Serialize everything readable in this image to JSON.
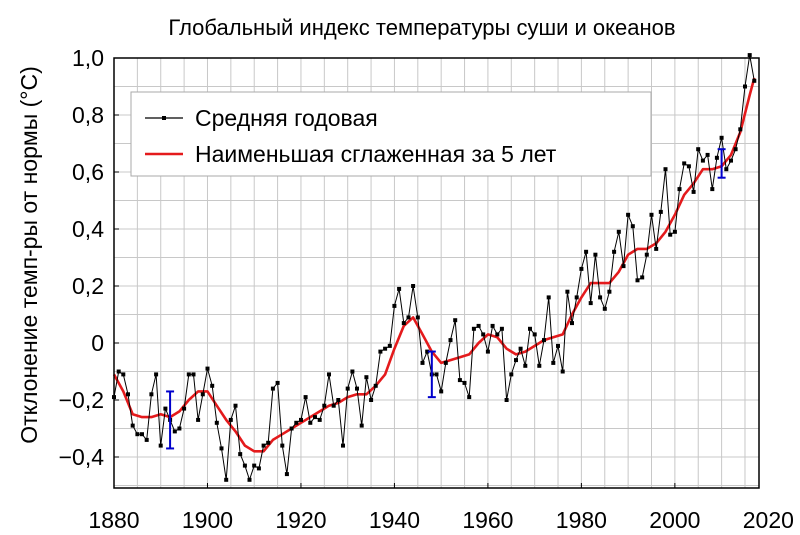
{
  "chart_data": {
    "type": "line",
    "title": "Глобальный индекс температуры суши и океанов",
    "xlabel": "",
    "ylabel": "Отклонение темп-ры от нормы (°C)",
    "xlim": [
      1880,
      2018
    ],
    "ylim": [
      -0.5,
      1.0
    ],
    "x_ticks": [
      1880,
      1900,
      1920,
      1940,
      1960,
      1980,
      2000,
      2020
    ],
    "y_ticks": [
      -0.4,
      -0.2,
      0,
      0.2,
      0.4,
      0.6,
      0.8,
      1.0
    ],
    "x_tick_labels": [
      "1880",
      "1900",
      "1920",
      "1940",
      "1960",
      "1980",
      "2000",
      "2020"
    ],
    "y_tick_labels": [
      "−0,4",
      "−0,2",
      "0",
      "0,2",
      "0,4",
      "0,6",
      "0,8",
      "1,0"
    ],
    "grid": true,
    "legend_position": "top-left",
    "colors": {
      "annual": "#000000",
      "smoothed": "#e41a1c",
      "error_bars": "#0000cc"
    },
    "series": [
      {
        "name": "Средняя годовая",
        "style": "line-with-square-markers",
        "x": [
          1880,
          1881,
          1882,
          1883,
          1884,
          1885,
          1886,
          1887,
          1888,
          1889,
          1890,
          1891,
          1892,
          1893,
          1894,
          1895,
          1896,
          1897,
          1898,
          1899,
          1900,
          1901,
          1902,
          1903,
          1904,
          1905,
          1906,
          1907,
          1908,
          1909,
          1910,
          1911,
          1912,
          1913,
          1914,
          1915,
          1916,
          1917,
          1918,
          1919,
          1920,
          1921,
          1922,
          1923,
          1924,
          1925,
          1926,
          1927,
          1928,
          1929,
          1930,
          1931,
          1932,
          1933,
          1934,
          1935,
          1936,
          1937,
          1938,
          1939,
          1940,
          1941,
          1942,
          1943,
          1944,
          1945,
          1946,
          1947,
          1948,
          1949,
          1950,
          1951,
          1952,
          1953,
          1954,
          1955,
          1956,
          1957,
          1958,
          1959,
          1960,
          1961,
          1962,
          1963,
          1964,
          1965,
          1966,
          1967,
          1968,
          1969,
          1970,
          1971,
          1972,
          1973,
          1974,
          1975,
          1976,
          1977,
          1978,
          1979,
          1980,
          1981,
          1982,
          1983,
          1984,
          1985,
          1986,
          1987,
          1988,
          1989,
          1990,
          1991,
          1992,
          1993,
          1994,
          1995,
          1996,
          1997,
          1998,
          1999,
          2000,
          2001,
          2002,
          2003,
          2004,
          2005,
          2006,
          2007,
          2008,
          2009,
          2010,
          2011,
          2012,
          2013,
          2014,
          2015,
          2016,
          2017
        ],
        "y": [
          -0.19,
          -0.1,
          -0.11,
          -0.18,
          -0.29,
          -0.32,
          -0.32,
          -0.34,
          -0.18,
          -0.11,
          -0.36,
          -0.23,
          -0.27,
          -0.31,
          -0.3,
          -0.23,
          -0.11,
          -0.11,
          -0.27,
          -0.18,
          -0.09,
          -0.15,
          -0.28,
          -0.37,
          -0.48,
          -0.27,
          -0.22,
          -0.39,
          -0.43,
          -0.48,
          -0.43,
          -0.44,
          -0.36,
          -0.35,
          -0.16,
          -0.14,
          -0.36,
          -0.46,
          -0.3,
          -0.28,
          -0.27,
          -0.19,
          -0.28,
          -0.26,
          -0.27,
          -0.22,
          -0.11,
          -0.22,
          -0.2,
          -0.36,
          -0.16,
          -0.1,
          -0.16,
          -0.29,
          -0.12,
          -0.2,
          -0.15,
          -0.03,
          -0.02,
          -0.01,
          0.13,
          0.19,
          0.07,
          0.09,
          0.2,
          0.09,
          -0.07,
          -0.03,
          -0.11,
          -0.11,
          -0.17,
          -0.07,
          0.01,
          0.08,
          -0.13,
          -0.14,
          -0.19,
          0.05,
          0.06,
          0.03,
          -0.03,
          0.06,
          0.03,
          0.05,
          -0.2,
          -0.11,
          -0.06,
          -0.02,
          -0.08,
          0.05,
          0.03,
          -0.08,
          0.01,
          0.16,
          -0.07,
          -0.01,
          -0.1,
          0.18,
          0.07,
          0.16,
          0.26,
          0.32,
          0.14,
          0.31,
          0.16,
          0.12,
          0.18,
          0.32,
          0.39,
          0.27,
          0.45,
          0.41,
          0.22,
          0.23,
          0.31,
          0.45,
          0.33,
          0.46,
          0.61,
          0.38,
          0.39,
          0.54,
          0.63,
          0.62,
          0.53,
          0.68,
          0.64,
          0.66,
          0.54,
          0.65,
          0.72,
          0.61,
          0.64,
          0.68,
          0.75,
          0.9,
          1.01,
          0.92
        ]
      },
      {
        "name": "Наименьшая сглаженная за 5 лет",
        "style": "line",
        "x": [
          1880,
          1882,
          1884,
          1886,
          1888,
          1890,
          1892,
          1894,
          1896,
          1898,
          1900,
          1902,
          1904,
          1906,
          1908,
          1910,
          1912,
          1914,
          1916,
          1918,
          1920,
          1922,
          1924,
          1926,
          1928,
          1930,
          1932,
          1934,
          1936,
          1938,
          1940,
          1942,
          1944,
          1946,
          1948,
          1950,
          1952,
          1954,
          1956,
          1958,
          1960,
          1962,
          1964,
          1966,
          1968,
          1970,
          1972,
          1974,
          1976,
          1978,
          1980,
          1982,
          1984,
          1986,
          1988,
          1990,
          1992,
          1994,
          1996,
          1998,
          2000,
          2002,
          2004,
          2006,
          2008,
          2010,
          2012,
          2014,
          2016,
          2017
        ],
        "y": [
          -0.11,
          -0.17,
          -0.25,
          -0.26,
          -0.26,
          -0.25,
          -0.26,
          -0.24,
          -0.2,
          -0.17,
          -0.17,
          -0.22,
          -0.27,
          -0.31,
          -0.36,
          -0.38,
          -0.38,
          -0.34,
          -0.32,
          -0.3,
          -0.28,
          -0.26,
          -0.24,
          -0.22,
          -0.21,
          -0.19,
          -0.18,
          -0.18,
          -0.15,
          -0.11,
          -0.02,
          0.06,
          0.09,
          0.03,
          -0.03,
          -0.07,
          -0.06,
          -0.05,
          -0.04,
          0.0,
          0.03,
          0.02,
          -0.02,
          -0.04,
          -0.03,
          -0.01,
          0.01,
          0.02,
          0.03,
          0.1,
          0.16,
          0.21,
          0.21,
          0.21,
          0.25,
          0.31,
          0.33,
          0.33,
          0.35,
          0.39,
          0.45,
          0.52,
          0.56,
          0.61,
          0.61,
          0.62,
          0.66,
          0.74,
          0.87,
          0.93
        ]
      }
    ],
    "error_bars": [
      {
        "x": 1892,
        "low": -0.37,
        "high": -0.17
      },
      {
        "x": 1948,
        "low": -0.19,
        "high": -0.03
      },
      {
        "x": 2010,
        "low": 0.58,
        "high": 0.68
      }
    ]
  }
}
